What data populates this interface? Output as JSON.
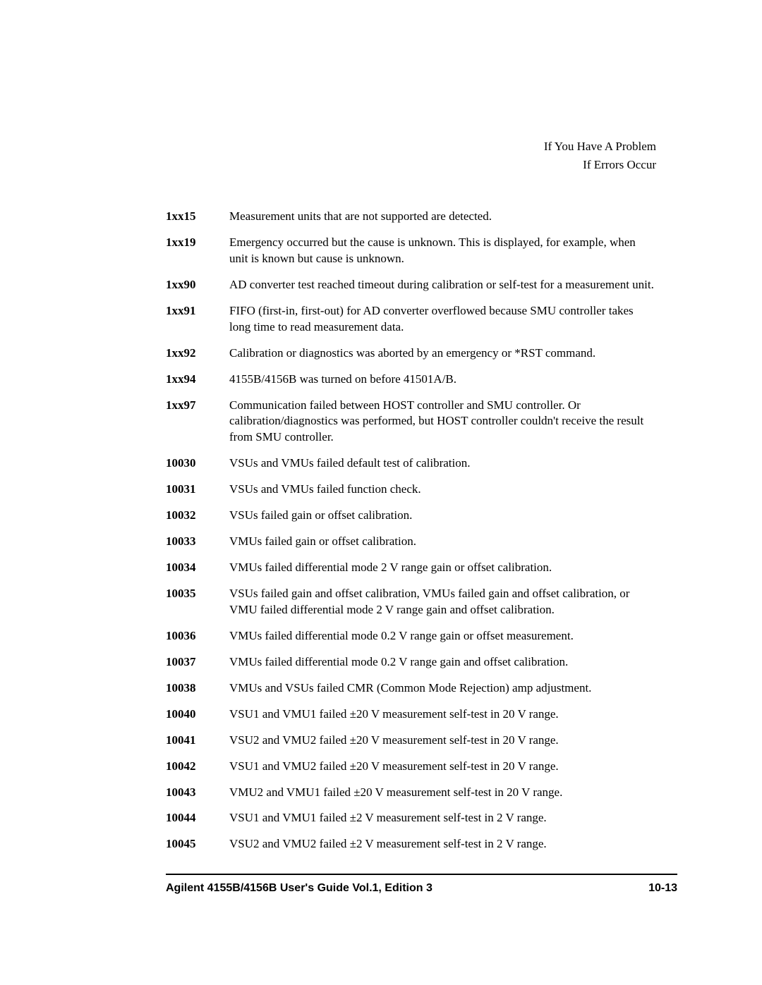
{
  "header": {
    "line1": "If You Have A Problem",
    "line2": "If Errors Occur"
  },
  "entries": [
    {
      "code": "1xx15",
      "desc": "Measurement units that are not supported are detected."
    },
    {
      "code": "1xx19",
      "desc": "Emergency occurred but the cause is unknown. This is displayed, for example, when unit is known but cause is unknown."
    },
    {
      "code": "1xx90",
      "desc": "AD converter test reached timeout during calibration or self-test for a measurement unit."
    },
    {
      "code": "1xx91",
      "desc": "FIFO (first-in, first-out) for AD converter overflowed because SMU controller takes long time to read measurement data."
    },
    {
      "code": "1xx92",
      "desc": "Calibration or diagnostics was aborted by an emergency or *RST command."
    },
    {
      "code": "1xx94",
      "desc": "4155B/4156B was turned on before 41501A/B."
    },
    {
      "code": "1xx97",
      "desc": "Communication failed between HOST controller and SMU controller. Or calibration/diagnostics was performed, but HOST controller couldn't receive the result from SMU controller."
    },
    {
      "code": "10030",
      "desc": "VSUs and VMUs failed default test of calibration."
    },
    {
      "code": "10031",
      "desc": "VSUs and VMUs failed function check."
    },
    {
      "code": "10032",
      "desc": "VSUs failed gain or offset calibration."
    },
    {
      "code": "10033",
      "desc": "VMUs failed gain or offset calibration."
    },
    {
      "code": "10034",
      "desc": "VMUs failed differential mode 2 V range gain or offset calibration."
    },
    {
      "code": "10035",
      "desc": "VSUs failed gain and offset calibration, VMUs failed gain and offset calibration, or VMU failed differential mode 2 V range gain and offset calibration."
    },
    {
      "code": "10036",
      "desc": "VMUs failed differential mode 0.2 V range gain or offset measurement."
    },
    {
      "code": "10037",
      "desc": "VMUs failed differential mode 0.2 V range gain and offset calibration."
    },
    {
      "code": "10038",
      "desc": "VMUs and VSUs failed CMR (Common Mode Rejection) amp adjustment."
    },
    {
      "code": "10040",
      "desc": "VSU1 and VMU1 failed ±20 V measurement self-test in 20 V range."
    },
    {
      "code": "10041",
      "desc": "VSU2 and VMU2 failed ±20 V measurement self-test in 20 V range."
    },
    {
      "code": "10042",
      "desc": "VSU1 and VMU2 failed ±20 V measurement self-test in 20 V range."
    },
    {
      "code": "10043",
      "desc": "VMU2 and VMU1 failed ±20 V measurement self-test in 20 V range."
    },
    {
      "code": "10044",
      "desc": "VSU1 and VMU1 failed ±2 V measurement self-test in 2 V range."
    },
    {
      "code": "10045",
      "desc": "VSU2 and VMU2 failed ±2 V measurement self-test in 2 V range."
    }
  ],
  "footer": {
    "title": "Agilent 4155B/4156B User's Guide Vol.1, Edition 3",
    "page": "10-13"
  }
}
